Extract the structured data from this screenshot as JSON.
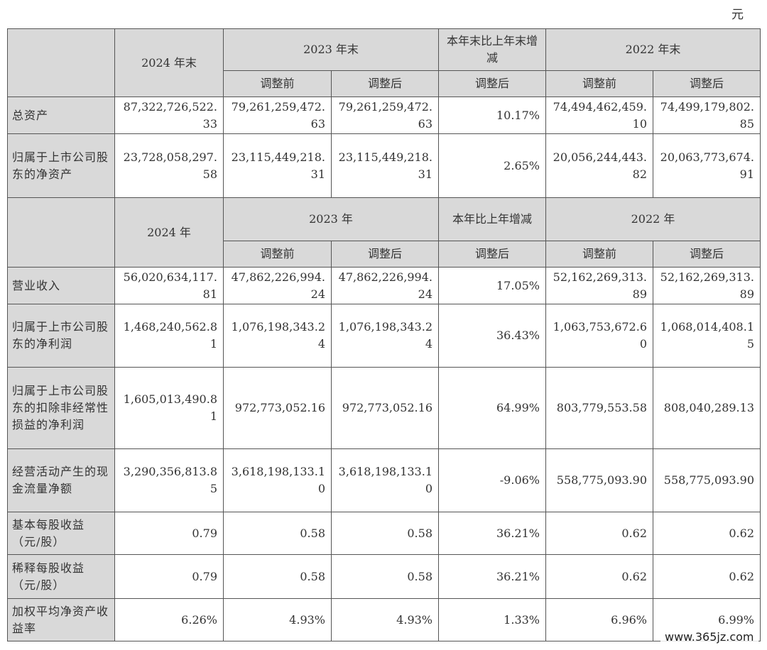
{
  "unit": "元",
  "section1": {
    "headers": {
      "y2024": "2024 年末",
      "y2023": "2023 年末",
      "change": "本年末比上年末增减",
      "y2022": "2022 年末",
      "before": "调整前",
      "after": "调整后"
    },
    "rows": [
      {
        "label": "总资产",
        "values": [
          "87,322,726,522.33",
          "79,261,259,472.63",
          "79,261,259,472.63",
          "10.17%",
          "74,494,462,459.10",
          "74,499,179,802.85"
        ]
      },
      {
        "label": "归属于上市公司股东的净资产",
        "values": [
          "23,728,058,297.58",
          "23,115,449,218.31",
          "23,115,449,218.31",
          "2.65%",
          "20,056,244,443.82",
          "20,063,773,674.91"
        ]
      }
    ]
  },
  "section2": {
    "headers": {
      "y2024": "2024 年",
      "y2023": "2023 年",
      "change": "本年比上年增减",
      "y2022": "2022 年",
      "before": "调整前",
      "after": "调整后"
    },
    "rows": [
      {
        "label": "营业收入",
        "values": [
          "56,020,634,117.81",
          "47,862,226,994.24",
          "47,862,226,994.24",
          "17.05%",
          "52,162,269,313.89",
          "52,162,269,313.89"
        ]
      },
      {
        "label": "归属于上市公司股东的净利润",
        "values": [
          "1,468,240,562.81",
          "1,076,198,343.24",
          "1,076,198,343.24",
          "36.43%",
          "1,063,753,672.60",
          "1,068,014,408.15"
        ]
      },
      {
        "label": "归属于上市公司股东的扣除非经常性损益的净利润",
        "values": [
          "1,605,013,490.81",
          "972,773,052.16",
          "972,773,052.16",
          "64.99%",
          "803,779,553.58",
          "808,040,289.13"
        ]
      },
      {
        "label": "经营活动产生的现金流量净额",
        "values": [
          "3,290,356,813.85",
          "3,618,198,133.10",
          "3,618,198,133.10",
          "-9.06%",
          "558,775,093.90",
          "558,775,093.90"
        ]
      },
      {
        "label": "基本每股收益（元/股）",
        "values": [
          "0.79",
          "0.58",
          "0.58",
          "36.21%",
          "0.62",
          "0.62"
        ]
      },
      {
        "label": "稀释每股收益（元/股）",
        "values": [
          "0.79",
          "0.58",
          "0.58",
          "36.21%",
          "0.62",
          "0.62"
        ]
      },
      {
        "label": "加权平均净资产收益率",
        "values": [
          "6.26%",
          "4.93%",
          "4.93%",
          "1.33%",
          "6.96%",
          "6.99%"
        ]
      }
    ]
  },
  "watermark": "www.365jz.com"
}
